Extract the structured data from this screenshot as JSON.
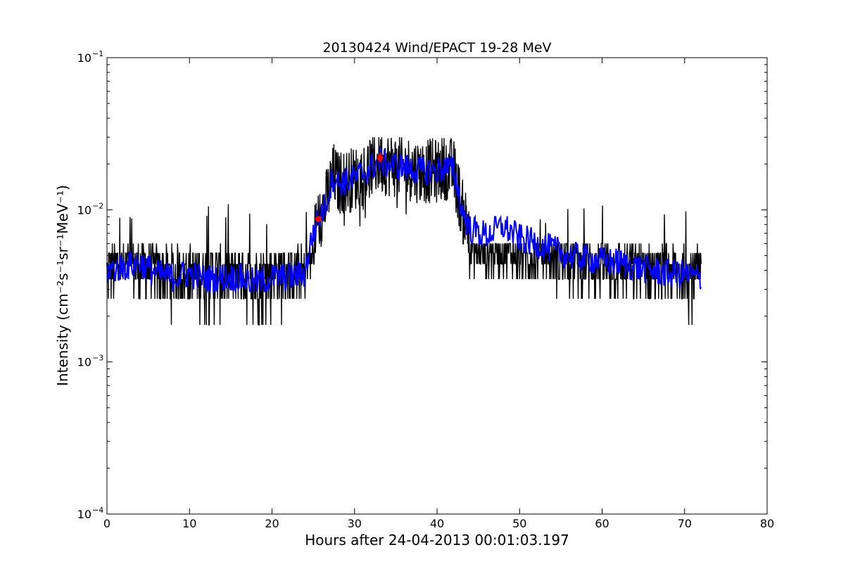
{
  "chart_data": {
    "type": "line",
    "title": "20130424 Wind/EPACT 19-28 MeV",
    "xlabel": "Hours after 24-04-2013 00:01:03.197",
    "ylabel": "Intensity (cm⁻²s⁻¹sr⁻¹MeV⁻¹)",
    "xlim": [
      0,
      80
    ],
    "ylim": [
      0.0001,
      0.1
    ],
    "yscale": "log",
    "x_ticks": [
      0,
      10,
      20,
      30,
      40,
      50,
      60,
      70,
      80
    ],
    "x_tick_labels": [
      "0",
      "10",
      "20",
      "30",
      "40",
      "50",
      "60",
      "70",
      "80"
    ],
    "y_tick_labels": [
      {
        "value": 0.0001,
        "base": "10",
        "exp": "−4"
      },
      {
        "value": 0.001,
        "base": "10",
        "exp": "−3"
      },
      {
        "value": 0.01,
        "base": "10",
        "exp": "−2"
      },
      {
        "value": 0.1,
        "base": "10",
        "exp": "−1"
      }
    ],
    "grid": false,
    "series": [
      {
        "color": "#000000",
        "style": "raw",
        "x": [
          0,
          2,
          4,
          6,
          8,
          10,
          12,
          14,
          16,
          18,
          20,
          22,
          24,
          24.5,
          25,
          25.5,
          26,
          26.5,
          27,
          27.5,
          28,
          30,
          32,
          33,
          34,
          36,
          38,
          40,
          41,
          42,
          42.5,
          43,
          44,
          46,
          48,
          50,
          52,
          54,
          56,
          58,
          60,
          62,
          64,
          66,
          68,
          70,
          72
        ],
        "y": [
          0.004,
          0.0042,
          0.0045,
          0.0038,
          0.0036,
          0.0038,
          0.0035,
          0.0036,
          0.0036,
          0.0033,
          0.0036,
          0.0036,
          0.0038,
          0.0055,
          0.007,
          0.0085,
          0.0095,
          0.011,
          0.014,
          0.017,
          0.015,
          0.016,
          0.019,
          0.021,
          0.02,
          0.019,
          0.018,
          0.018,
          0.019,
          0.018,
          0.014,
          0.01,
          0.0075,
          0.0068,
          0.0078,
          0.0065,
          0.006,
          0.0055,
          0.005,
          0.0048,
          0.0046,
          0.0045,
          0.0042,
          0.004,
          0.0038,
          0.0038,
          0.0035
        ],
        "noise_range": [
          0.00088,
          0.03
        ]
      },
      {
        "color": "#0000ff",
        "style": "smoothed",
        "x": [
          0,
          2,
          4,
          6,
          8,
          10,
          12,
          14,
          16,
          18,
          20,
          22,
          24,
          24.5,
          25,
          25.5,
          26,
          26.5,
          27,
          27.5,
          28,
          30,
          32,
          33,
          34,
          36,
          38,
          40,
          41,
          42,
          42.5,
          43,
          44,
          46,
          48,
          50,
          52,
          54,
          56,
          58,
          60,
          62,
          64,
          66,
          68,
          70,
          72
        ],
        "y": [
          0.004,
          0.0042,
          0.0045,
          0.0038,
          0.0036,
          0.0038,
          0.0035,
          0.0036,
          0.0036,
          0.0033,
          0.0036,
          0.0036,
          0.0038,
          0.0055,
          0.007,
          0.0085,
          0.0095,
          0.011,
          0.014,
          0.017,
          0.015,
          0.016,
          0.019,
          0.021,
          0.02,
          0.019,
          0.018,
          0.018,
          0.019,
          0.018,
          0.014,
          0.01,
          0.0075,
          0.0068,
          0.0078,
          0.0065,
          0.006,
          0.0055,
          0.005,
          0.0048,
          0.0046,
          0.0045,
          0.0042,
          0.004,
          0.0038,
          0.0038,
          0.0035
        ]
      }
    ],
    "markers": [
      {
        "shape": "circle",
        "color": "#ff0000",
        "x": 25.6,
        "y": 0.0087
      },
      {
        "shape": "diamond",
        "color": "#ff0000",
        "x": 33.1,
        "y": 0.022
      }
    ]
  }
}
